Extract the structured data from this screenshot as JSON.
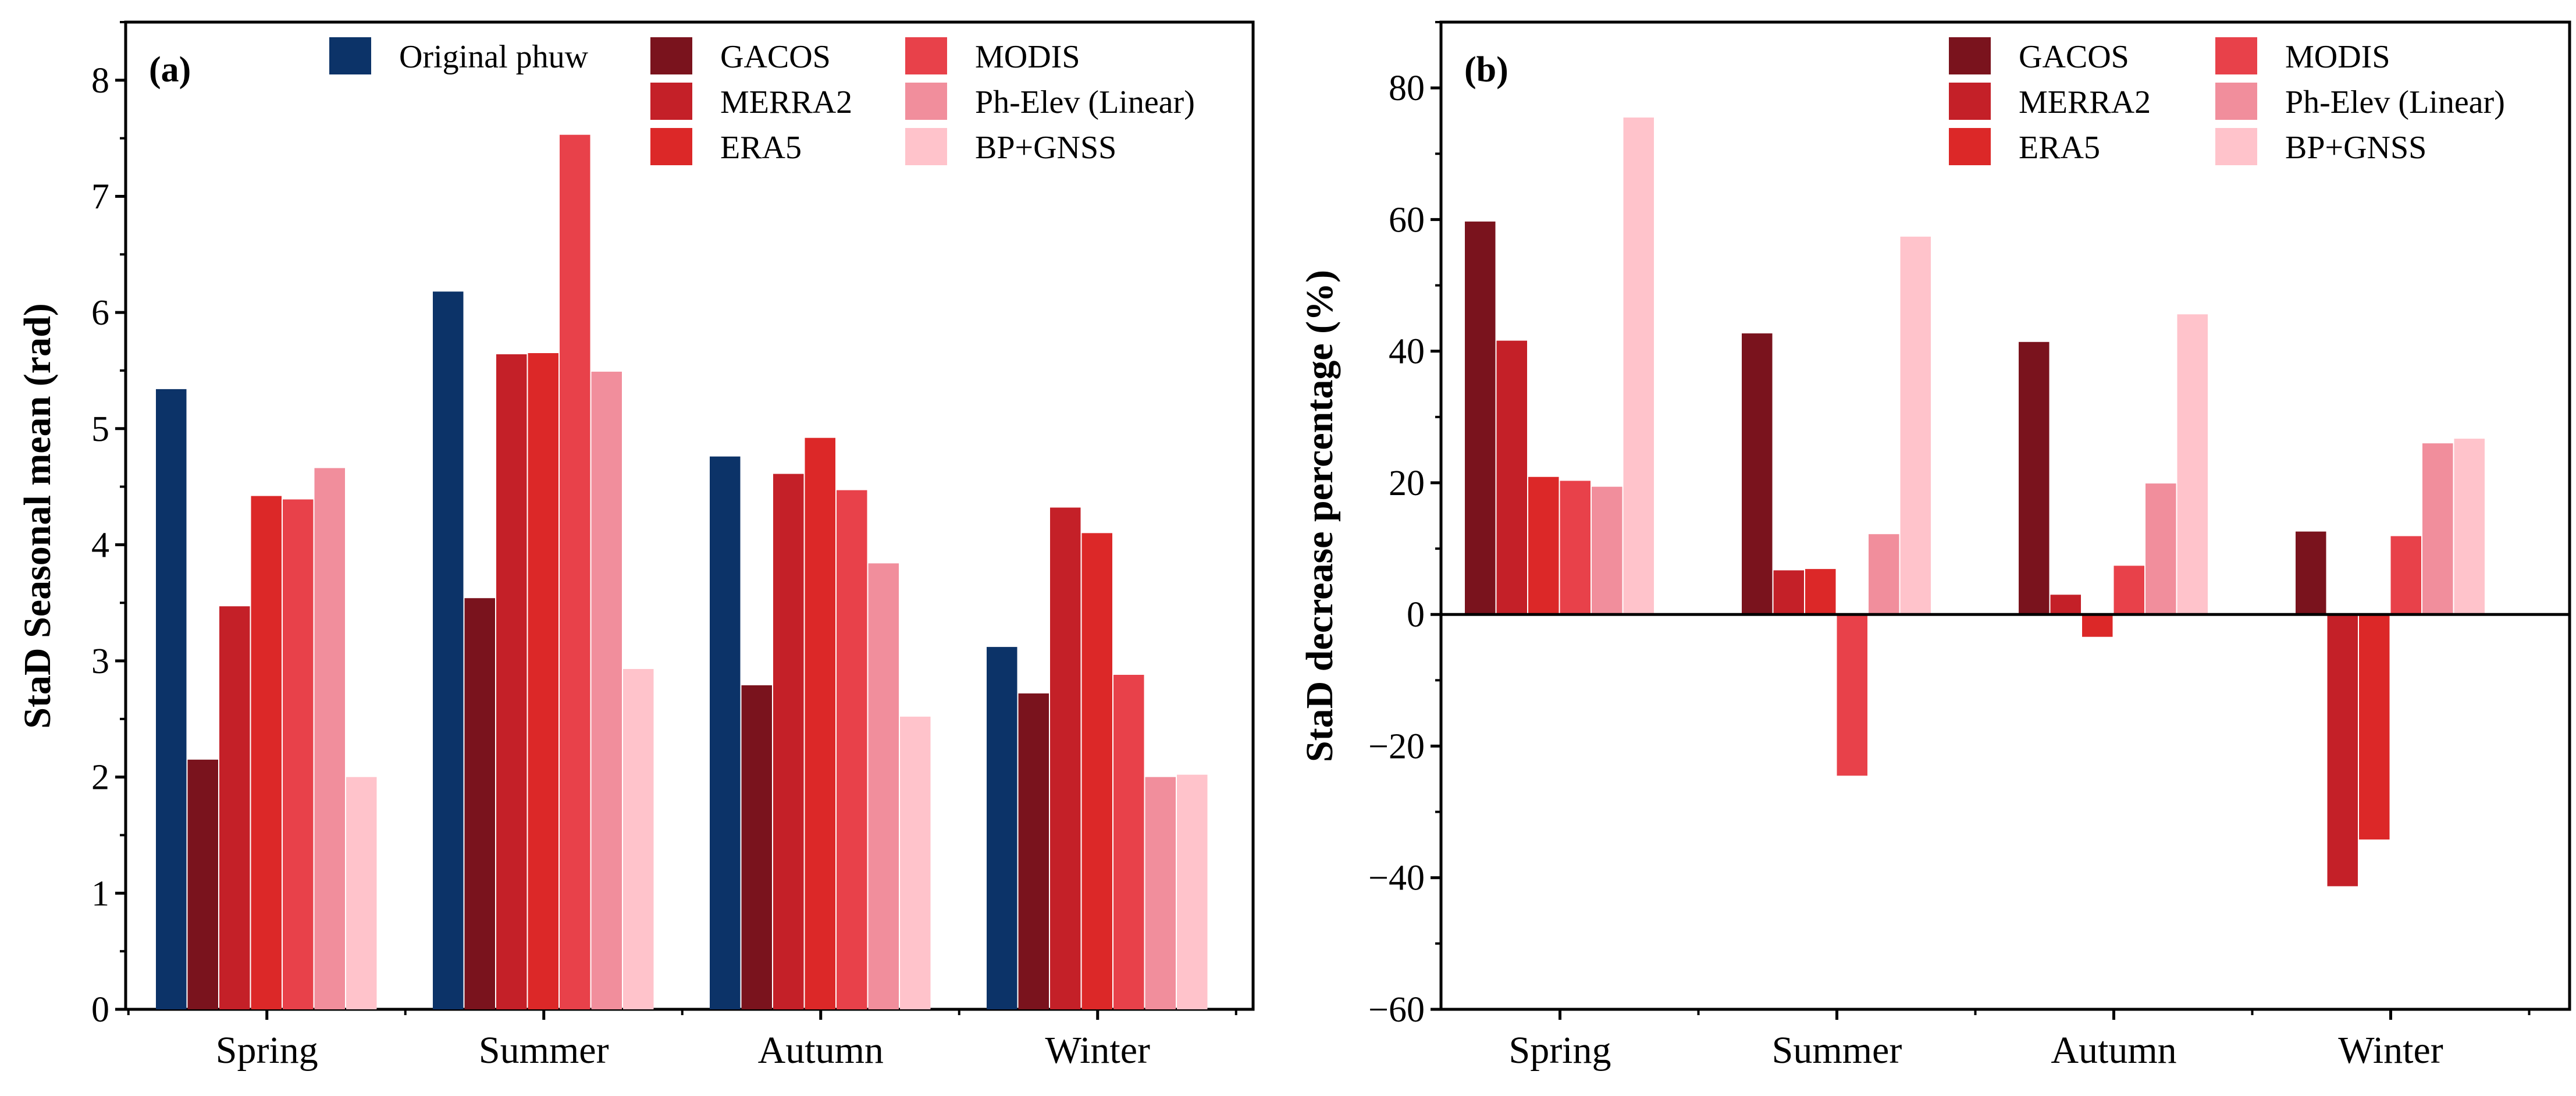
{
  "colors": {
    "original_phuw": "#0c3368",
    "gacos": "#7a131d",
    "merra2": "#c42028",
    "era5": "#dc2828",
    "modis": "#e8414a",
    "ph_elev_linear": "#f18e9c",
    "bp_gnss": "#ffc3cb"
  },
  "chart_data": [
    {
      "panel": "(a)",
      "type": "bar",
      "categories": [
        "Spring",
        "Summer",
        "Autumn",
        "Winter"
      ],
      "ylabel": "StaD Seasonal mean (rad)",
      "xlabel": "",
      "ylim": [
        0,
        8.5
      ],
      "yticks": [
        "0",
        "1",
        "2",
        "3",
        "4",
        "5",
        "6",
        "7",
        "8"
      ],
      "grid": false,
      "legend_position": "top",
      "series": [
        {
          "name": "Original phuw",
          "color_key": "original_phuw",
          "values": [
            5.34,
            6.18,
            4.76,
            3.12
          ]
        },
        {
          "name": "GACOS",
          "color_key": "gacos",
          "values": [
            2.15,
            3.54,
            2.79,
            2.72
          ]
        },
        {
          "name": "MERRA2",
          "color_key": "merra2",
          "values": [
            3.47,
            5.64,
            4.61,
            4.32
          ]
        },
        {
          "name": "ERA5",
          "color_key": "era5",
          "values": [
            4.42,
            5.65,
            4.92,
            4.1
          ]
        },
        {
          "name": "MODIS",
          "color_key": "modis",
          "values": [
            4.39,
            7.53,
            4.47,
            2.88
          ]
        },
        {
          "name": "Ph-Elev (Linear)",
          "color_key": "ph_elev_linear",
          "values": [
            4.66,
            5.49,
            3.84,
            2.0
          ]
        },
        {
          "name": "BP+GNSS",
          "color_key": "bp_gnss",
          "values": [
            2.0,
            2.93,
            2.52,
            2.02
          ]
        }
      ]
    },
    {
      "panel": "(b)",
      "type": "bar",
      "categories": [
        "Spring",
        "Summer",
        "Autumn",
        "Winter"
      ],
      "ylabel": "StaD decrease percentage (%)",
      "xlabel": "",
      "ylim": [
        -60,
        90
      ],
      "yticks": [
        "−60",
        "−40",
        "−20",
        "0",
        "20",
        "40",
        "60",
        "80"
      ],
      "grid": false,
      "legend_position": "top-right",
      "series": [
        {
          "name": "GACOS",
          "color_key": "gacos",
          "values": [
            59.7,
            42.7,
            41.4,
            12.6
          ]
        },
        {
          "name": "MERRA2",
          "color_key": "merra2",
          "values": [
            41.6,
            6.7,
            3.0,
            -41.3
          ]
        },
        {
          "name": "ERA5",
          "color_key": "era5",
          "values": [
            20.9,
            6.9,
            -3.4,
            -34.2
          ]
        },
        {
          "name": "MODIS",
          "color_key": "modis",
          "values": [
            20.3,
            -24.5,
            7.4,
            11.9
          ]
        },
        {
          "name": "Ph-Elev (Linear)",
          "color_key": "ph_elev_linear",
          "values": [
            19.4,
            12.2,
            19.9,
            26.0
          ]
        },
        {
          "name": "BP+GNSS",
          "color_key": "bp_gnss",
          "values": [
            75.5,
            57.4,
            45.6,
            26.7
          ]
        }
      ]
    }
  ]
}
